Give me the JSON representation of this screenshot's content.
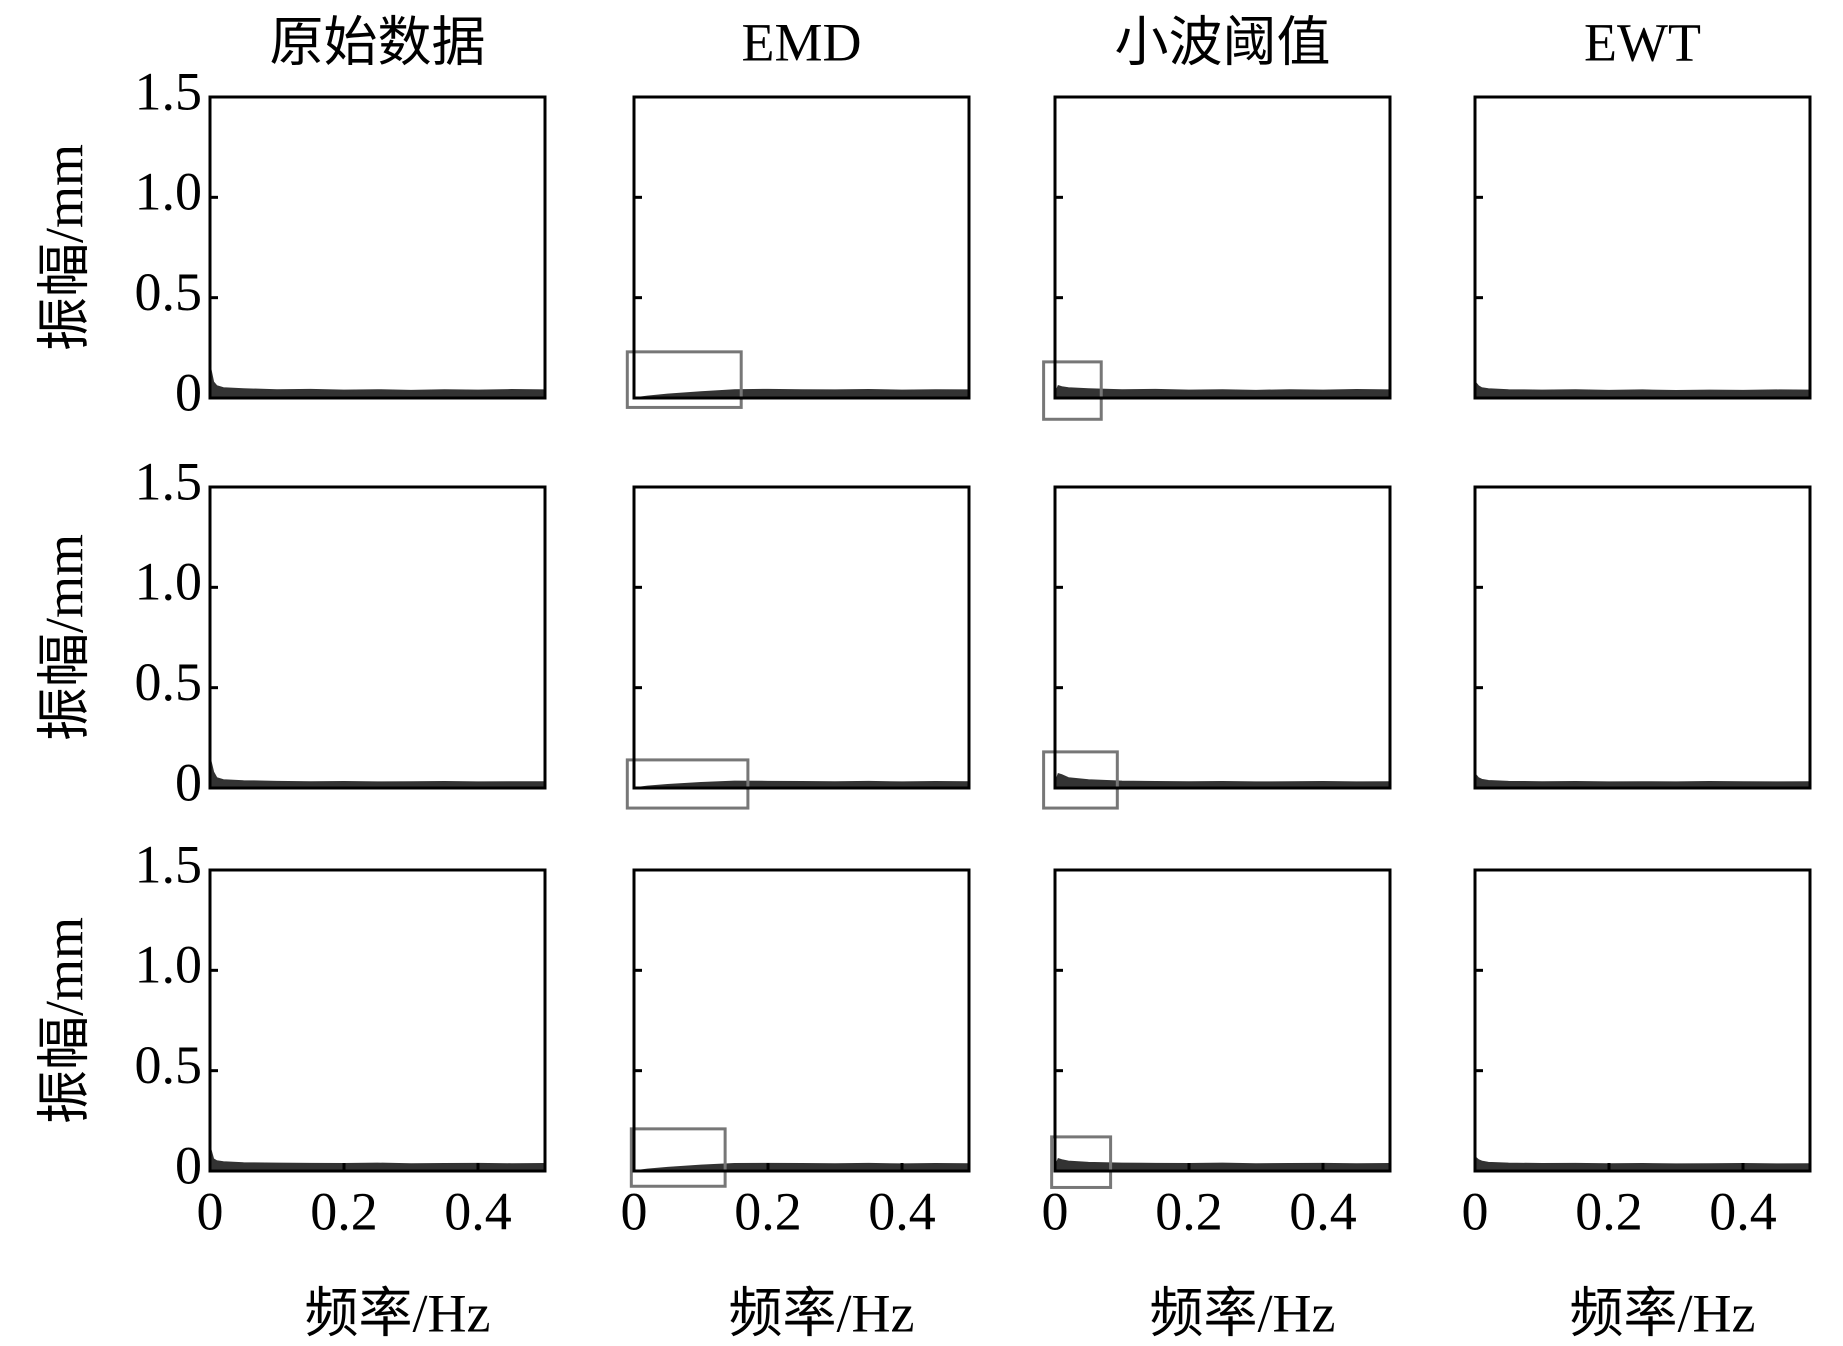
{
  "chart_data": [
    {
      "type": "area",
      "title": "原始数据",
      "ylabel": "振幅/mm",
      "color": "#333333",
      "xlim": [
        0,
        0.5
      ],
      "ylim": [
        0,
        1.5
      ],
      "yticks": [
        0,
        {
          "value": 0.5,
          "label": "0.5"
        },
        {
          "value": 1,
          "label": "1.0"
        },
        1.5
      ],
      "x": [
        0,
        0.005,
        0.01,
        0.02,
        0.05,
        0.1,
        0.15,
        0.2,
        0.25,
        0.3,
        0.35,
        0.4,
        0.45,
        0.5
      ],
      "values": [
        0.16,
        0.08,
        0.06,
        0.05,
        0.045,
        0.04,
        0.042,
        0.038,
        0.04,
        0.037,
        0.04,
        0.038,
        0.041,
        0.039
      ]
    },
    {
      "type": "area",
      "title": "EMD",
      "color": "#333333",
      "xlim": [
        0,
        0.5
      ],
      "ylim": [
        0,
        1.5
      ],
      "yticks": [
        0,
        0.5,
        1,
        1.5
      ],
      "x": [
        0,
        0.005,
        0.01,
        0.02,
        0.05,
        0.1,
        0.15,
        0.2,
        0.25,
        0.3,
        0.35,
        0.4,
        0.45,
        0.5
      ],
      "values": [
        0,
        0.002,
        0.004,
        0.008,
        0.018,
        0.03,
        0.04,
        0.042,
        0.04,
        0.039,
        0.041,
        0.038,
        0.04,
        0.039
      ],
      "highlight": {
        "x": [
          -0.01,
          0.16
        ],
        "y": [
          -0.047,
          0.23
        ]
      }
    },
    {
      "type": "area",
      "title": "小波阈值",
      "color": "#333333",
      "xlim": [
        0,
        0.5
      ],
      "ylim": [
        0,
        1.5
      ],
      "yticks": [
        0,
        0.5,
        1,
        1.5
      ],
      "x": [
        0,
        0.005,
        0.01,
        0.02,
        0.05,
        0.1,
        0.15,
        0.2,
        0.25,
        0.3,
        0.35,
        0.4,
        0.45,
        0.5
      ],
      "values": [
        0.02,
        0.06,
        0.055,
        0.05,
        0.045,
        0.04,
        0.042,
        0.038,
        0.04,
        0.037,
        0.04,
        0.038,
        0.041,
        0.039
      ],
      "highlight": {
        "x": [
          -0.017,
          0.069
        ],
        "y": [
          -0.106,
          0.18
        ]
      }
    },
    {
      "type": "area",
      "title": "EWT",
      "color": "#333333",
      "xlim": [
        0,
        0.5
      ],
      "ylim": [
        0,
        1.5
      ],
      "yticks": [
        0,
        0.5,
        1,
        1.5
      ],
      "x": [
        0,
        0.005,
        0.01,
        0.02,
        0.05,
        0.1,
        0.15,
        0.2,
        0.25,
        0.3,
        0.35,
        0.4,
        0.45,
        0.5
      ],
      "values": [
        0.08,
        0.06,
        0.05,
        0.045,
        0.04,
        0.038,
        0.04,
        0.037,
        0.039,
        0.036,
        0.038,
        0.037,
        0.039,
        0.038
      ]
    },
    {
      "type": "area",
      "ylabel": "振幅/mm",
      "color": "#333333",
      "xlim": [
        0,
        0.5
      ],
      "ylim": [
        0,
        1.5
      ],
      "yticks": [
        0,
        {
          "value": 0.5,
          "label": "0.5"
        },
        {
          "value": 1,
          "label": "1.0"
        },
        1.5
      ],
      "x": [
        0,
        0.005,
        0.01,
        0.02,
        0.05,
        0.1,
        0.15,
        0.2,
        0.25,
        0.3,
        0.35,
        0.4,
        0.45,
        0.5
      ],
      "values": [
        0.15,
        0.08,
        0.05,
        0.04,
        0.035,
        0.032,
        0.03,
        0.031,
        0.029,
        0.03,
        0.031,
        0.029,
        0.03,
        0.03
      ]
    },
    {
      "type": "area",
      "color": "#333333",
      "xlim": [
        0,
        0.5
      ],
      "ylim": [
        0,
        1.5
      ],
      "yticks": [
        0,
        0.5,
        1,
        1.5
      ],
      "x": [
        0,
        0.005,
        0.01,
        0.02,
        0.05,
        0.1,
        0.15,
        0.2,
        0.25,
        0.3,
        0.35,
        0.4,
        0.45,
        0.5
      ],
      "values": [
        0,
        0.002,
        0.004,
        0.008,
        0.016,
        0.026,
        0.033,
        0.032,
        0.031,
        0.03,
        0.032,
        0.029,
        0.031,
        0.03
      ],
      "highlight": {
        "x": [
          -0.01,
          0.17
        ],
        "y": [
          -0.1,
          0.14
        ]
      }
    },
    {
      "type": "area",
      "color": "#333333",
      "xlim": [
        0,
        0.5
      ],
      "ylim": [
        0,
        1.5
      ],
      "yticks": [
        0,
        0.5,
        1,
        1.5
      ],
      "x": [
        0,
        0.005,
        0.01,
        0.02,
        0.05,
        0.1,
        0.15,
        0.2,
        0.25,
        0.3,
        0.35,
        0.4,
        0.45,
        0.5
      ],
      "values": [
        0.02,
        0.07,
        0.065,
        0.05,
        0.04,
        0.033,
        0.031,
        0.03,
        0.031,
        0.029,
        0.03,
        0.031,
        0.029,
        0.03
      ],
      "highlight": {
        "x": [
          -0.017,
          0.093
        ],
        "y": [
          -0.1,
          0.18
        ]
      }
    },
    {
      "type": "area",
      "color": "#333333",
      "xlim": [
        0,
        0.5
      ],
      "ylim": [
        0,
        1.5
      ],
      "yticks": [
        0,
        0.5,
        1,
        1.5
      ],
      "x": [
        0,
        0.005,
        0.01,
        0.02,
        0.05,
        0.1,
        0.15,
        0.2,
        0.25,
        0.3,
        0.35,
        0.4,
        0.45,
        0.5
      ],
      "values": [
        0.07,
        0.05,
        0.042,
        0.036,
        0.032,
        0.03,
        0.031,
        0.029,
        0.03,
        0.029,
        0.031,
        0.03,
        0.029,
        0.03
      ]
    },
    {
      "type": "area",
      "ylabel": "振幅/mm",
      "xlabel": "频率/Hz",
      "color": "#333333",
      "xlim": [
        0,
        0.5
      ],
      "ylim": [
        0,
        1.5
      ],
      "yticks": [
        0,
        {
          "value": 0.5,
          "label": "0.5"
        },
        {
          "value": 1,
          "label": "1.0"
        },
        1.5
      ],
      "xticks": [
        0,
        0.2,
        0.4
      ],
      "x": [
        0,
        0.005,
        0.01,
        0.02,
        0.05,
        0.1,
        0.15,
        0.2,
        0.25,
        0.3,
        0.35,
        0.4,
        0.45,
        0.5
      ],
      "values": [
        0.12,
        0.06,
        0.05,
        0.045,
        0.04,
        0.038,
        0.037,
        0.036,
        0.038,
        0.035,
        0.036,
        0.037,
        0.035,
        0.036
      ]
    },
    {
      "type": "area",
      "xlabel": "频率/Hz",
      "color": "#333333",
      "xlim": [
        0,
        0.5
      ],
      "ylim": [
        0,
        1.5
      ],
      "yticks": [
        0,
        0.5,
        1,
        1.5
      ],
      "xticks": [
        0,
        0.2,
        0.4
      ],
      "x": [
        0,
        0.005,
        0.01,
        0.02,
        0.05,
        0.1,
        0.15,
        0.2,
        0.25,
        0.3,
        0.35,
        0.4,
        0.45,
        0.5
      ],
      "values": [
        0,
        0.002,
        0.004,
        0.008,
        0.017,
        0.028,
        0.036,
        0.037,
        0.036,
        0.035,
        0.037,
        0.034,
        0.036,
        0.035
      ],
      "highlight": {
        "x": [
          -0.004,
          0.136
        ],
        "y": [
          -0.076,
          0.21
        ]
      }
    },
    {
      "type": "area",
      "xlabel": "频率/Hz",
      "color": "#333333",
      "xlim": [
        0,
        0.5
      ],
      "ylim": [
        0,
        1.5
      ],
      "yticks": [
        0,
        0.5,
        1,
        1.5
      ],
      "xticks": [
        0,
        0.2,
        0.4
      ],
      "x": [
        0,
        0.005,
        0.01,
        0.02,
        0.05,
        0.1,
        0.15,
        0.2,
        0.25,
        0.3,
        0.35,
        0.4,
        0.45,
        0.5
      ],
      "values": [
        0.02,
        0.06,
        0.055,
        0.048,
        0.042,
        0.038,
        0.037,
        0.036,
        0.038,
        0.035,
        0.036,
        0.037,
        0.035,
        0.036
      ],
      "highlight": {
        "x": [
          -0.005,
          0.083
        ],
        "y": [
          -0.082,
          0.17
        ]
      }
    },
    {
      "type": "area",
      "xlabel": "频率/Hz",
      "color": "#333333",
      "xlim": [
        0,
        0.5
      ],
      "ylim": [
        0,
        1.5
      ],
      "yticks": [
        0,
        0.5,
        1,
        1.5
      ],
      "xticks": [
        0,
        0.2,
        0.4
      ],
      "x": [
        0,
        0.005,
        0.01,
        0.02,
        0.05,
        0.1,
        0.15,
        0.2,
        0.25,
        0.3,
        0.35,
        0.4,
        0.45,
        0.5
      ],
      "values": [
        0.07,
        0.055,
        0.048,
        0.042,
        0.038,
        0.036,
        0.037,
        0.035,
        0.036,
        0.034,
        0.035,
        0.036,
        0.034,
        0.035
      ]
    }
  ]
}
